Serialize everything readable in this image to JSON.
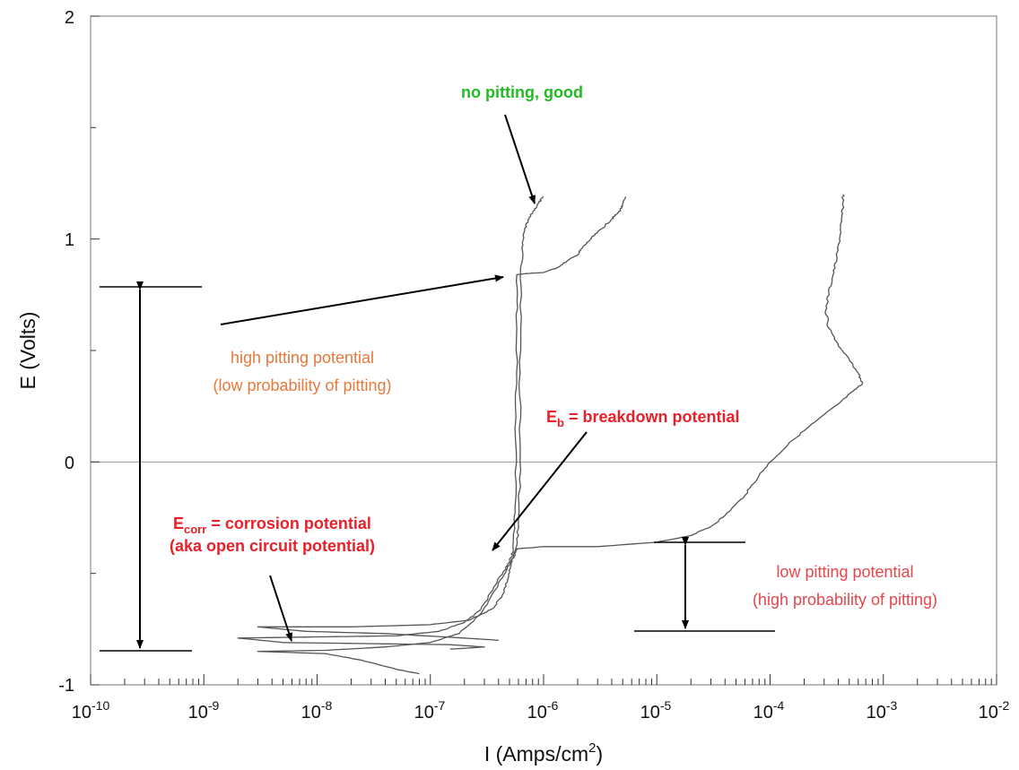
{
  "chart_data": {
    "type": "line",
    "xlabel_main": "I (Amps/cm",
    "xlabel_sup": "2",
    "xlabel_close": ")",
    "ylabel": "E (Volts)",
    "x_scale": "log",
    "xlim": [
      1e-10,
      0.01
    ],
    "ylim": [
      -1,
      2
    ],
    "grid": "horizontal line at E = 0",
    "x_ticks": [
      {
        "base": "10",
        "exp": "-10",
        "value": 1e-10
      },
      {
        "base": "10",
        "exp": "-9",
        "value": 1e-09
      },
      {
        "base": "10",
        "exp": "-8",
        "value": 1e-08
      },
      {
        "base": "10",
        "exp": "-7",
        "value": 1e-07
      },
      {
        "base": "10",
        "exp": "-6",
        "value": 1e-06
      },
      {
        "base": "10",
        "exp": "-5",
        "value": 1e-05
      },
      {
        "base": "10",
        "exp": "-4",
        "value": 0.0001
      },
      {
        "base": "10",
        "exp": "-3",
        "value": 0.001
      },
      {
        "base": "10",
        "exp": "-2",
        "value": 0.01
      }
    ],
    "y_ticks": [
      {
        "label": "2",
        "value": 2
      },
      {
        "label": "1",
        "value": 1
      },
      {
        "label": "0",
        "value": 0
      },
      {
        "label": "-1",
        "value": -1
      }
    ],
    "series": [
      {
        "color": "#555555",
        "points": [
          [
            8e-08,
            -0.95
          ],
          [
            5e-08,
            -0.93
          ],
          [
            2.5e-08,
            -0.89
          ],
          [
            1.2e-08,
            -0.86
          ],
          [
            3e-09,
            -0.85
          ],
          [
            1.2e-08,
            -0.845
          ],
          [
            4e-08,
            -0.83
          ],
          [
            1e-07,
            -0.81
          ],
          [
            1.8e-07,
            -0.77
          ],
          [
            2.8e-07,
            -0.68
          ],
          [
            3.8e-07,
            -0.57
          ],
          [
            4.8e-07,
            -0.47
          ],
          [
            5.6e-07,
            -0.42
          ],
          [
            6e-07,
            -0.3
          ],
          [
            6.2e-07,
            0
          ],
          [
            6.2e-07,
            0.4
          ],
          [
            6.3e-07,
            0.8
          ],
          [
            6.5e-07,
            0.95
          ],
          [
            6.8e-07,
            1.04
          ],
          [
            7.3e-07,
            1.08
          ],
          [
            8e-07,
            1.12
          ],
          [
            9e-07,
            1.16
          ],
          [
            1e-06,
            1.19
          ]
        ]
      },
      {
        "color": "#555555",
        "points": [
          [
            1.5e-07,
            -0.84
          ],
          [
            3e-07,
            -0.83
          ],
          [
            1.5e-07,
            -0.82
          ],
          [
            5e-09,
            -0.81
          ],
          [
            2e-09,
            -0.79
          ],
          [
            1e-08,
            -0.785
          ],
          [
            5e-08,
            -0.78
          ],
          [
            1.2e-07,
            -0.76
          ],
          [
            2e-07,
            -0.72
          ],
          [
            2.8e-07,
            -0.66
          ],
          [
            3.5e-07,
            -0.58
          ],
          [
            4.2e-07,
            -0.51
          ],
          [
            5e-07,
            -0.45
          ],
          [
            5.4e-07,
            -0.4
          ],
          [
            5.6e-07,
            -0.2
          ],
          [
            5.7e-07,
            0.2
          ],
          [
            5.8e-07,
            0.6
          ],
          [
            5.8e-07,
            0.84
          ],
          [
            7e-07,
            0.845
          ],
          [
            1e-06,
            0.85
          ],
          [
            1.3e-06,
            0.87
          ],
          [
            1.6e-06,
            0.9
          ],
          [
            2e-06,
            0.93
          ],
          [
            2.2e-06,
            0.96
          ],
          [
            2.6e-06,
            1.0
          ],
          [
            3e-06,
            1.03
          ],
          [
            3.5e-06,
            1.06
          ],
          [
            4e-06,
            1.09
          ],
          [
            4.6e-06,
            1.12
          ],
          [
            5e-06,
            1.15
          ],
          [
            5.3e-06,
            1.19
          ]
        ]
      },
      {
        "color": "#555555",
        "points": [
          [
            4e-07,
            -0.8
          ],
          [
            2e-07,
            -0.79
          ],
          [
            4e-08,
            -0.77
          ],
          [
            8e-09,
            -0.76
          ],
          [
            3e-09,
            -0.74
          ],
          [
            2e-08,
            -0.74
          ],
          [
            1e-07,
            -0.73
          ],
          [
            2.2e-07,
            -0.71
          ],
          [
            3.5e-07,
            -0.66
          ],
          [
            4.3e-07,
            -0.6
          ],
          [
            4.8e-07,
            -0.53
          ],
          [
            5.2e-07,
            -0.46
          ],
          [
            5.5e-07,
            -0.41
          ],
          [
            5.8e-07,
            -0.39
          ],
          [
            1e-06,
            -0.38
          ],
          [
            3e-06,
            -0.38
          ],
          [
            1e-05,
            -0.36
          ],
          [
            2e-05,
            -0.33
          ],
          [
            3e-05,
            -0.29
          ],
          [
            4e-05,
            -0.24
          ],
          [
            6e-05,
            -0.15
          ],
          [
            8e-05,
            -0.06
          ],
          [
            0.0001,
            0.0
          ],
          [
            0.00016,
            0.1
          ],
          [
            0.00025,
            0.18
          ],
          [
            0.0004,
            0.26
          ],
          [
            0.00055,
            0.32
          ],
          [
            0.00065,
            0.35
          ],
          [
            0.0006,
            0.4
          ],
          [
            0.0005,
            0.46
          ],
          [
            0.0004,
            0.52
          ],
          [
            0.00033,
            0.6
          ],
          [
            0.00031,
            0.68
          ],
          [
            0.00033,
            0.76
          ],
          [
            0.00036,
            0.84
          ],
          [
            0.00039,
            0.92
          ],
          [
            0.00041,
            1.0
          ],
          [
            0.00043,
            1.08
          ],
          [
            0.00044,
            1.15
          ],
          [
            0.00044,
            1.2
          ]
        ]
      }
    ],
    "annotations": {
      "no_pitting": "no pitting, good",
      "high_line1": "high pitting potential",
      "high_line2": "(low probability of pitting)",
      "eb_main": "E",
      "eb_sub": "b",
      "eb_rest": " = breakdown potential",
      "ecorr_main": "E",
      "ecorr_sub": "corr",
      "ecorr_rest": " = corrosion potential",
      "ecorr_line2": "(aka open circuit potential)",
      "low_line1": "low pitting potential",
      "low_line2": "(high probability of pitting)"
    },
    "colors": {
      "green": "#22bb22",
      "orange": "#e8783c",
      "red": "#e8202a",
      "red_light": "#e5474d",
      "curve": "#555555"
    }
  }
}
